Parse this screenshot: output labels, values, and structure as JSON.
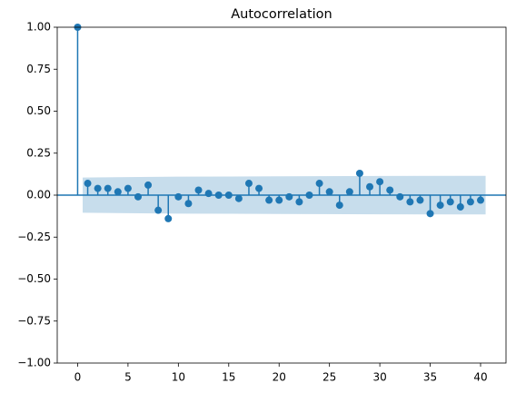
{
  "chart_data": {
    "type": "stem",
    "title": "Autocorrelation",
    "x": [
      0,
      1,
      2,
      3,
      4,
      5,
      6,
      7,
      8,
      9,
      10,
      11,
      12,
      13,
      14,
      15,
      16,
      17,
      18,
      19,
      20,
      21,
      22,
      23,
      24,
      25,
      26,
      27,
      28,
      29,
      30,
      31,
      32,
      33,
      34,
      35,
      36,
      37,
      38,
      39,
      40
    ],
    "values": [
      1.0,
      0.07,
      0.04,
      0.04,
      0.02,
      0.04,
      -0.01,
      0.06,
      -0.09,
      -0.14,
      -0.01,
      -0.05,
      0.03,
      0.01,
      0.0,
      0.0,
      -0.02,
      0.07,
      0.04,
      -0.03,
      -0.03,
      -0.01,
      -0.04,
      0.0,
      0.07,
      0.02,
      -0.06,
      0.02,
      0.13,
      0.05,
      0.08,
      0.03,
      -0.01,
      -0.04,
      -0.03,
      -0.11,
      -0.06,
      -0.04,
      -0.07,
      -0.04,
      -0.03
    ],
    "color": "#1f77b4",
    "confint": {
      "x": [
        0.5,
        10,
        20,
        30,
        40.5
      ],
      "upper": [
        0.105,
        0.11,
        0.112,
        0.114,
        0.115
      ],
      "lower": [
        -0.105,
        -0.11,
        -0.112,
        -0.114,
        -0.115
      ],
      "color": "#1f77b4"
    },
    "xlim": [
      -2.025,
      42.525
    ],
    "xticks": [
      0,
      5,
      10,
      15,
      20,
      25,
      30,
      35,
      40
    ],
    "ylim": [
      -1,
      1
    ],
    "yticks": [
      {
        "value": -1,
        "label": "−1.00"
      },
      {
        "value": -0.75,
        "label": "−0.75"
      },
      {
        "value": -0.5,
        "label": "−0.50"
      },
      {
        "value": -0.25,
        "label": "−0.25"
      },
      {
        "value": 0,
        "label": "0.00"
      },
      {
        "value": 0.25,
        "label": "0.25"
      },
      {
        "value": 0.5,
        "label": "0.50"
      },
      {
        "value": 0.75,
        "label": "0.75"
      },
      {
        "value": 1,
        "label": "1.00"
      }
    ]
  }
}
